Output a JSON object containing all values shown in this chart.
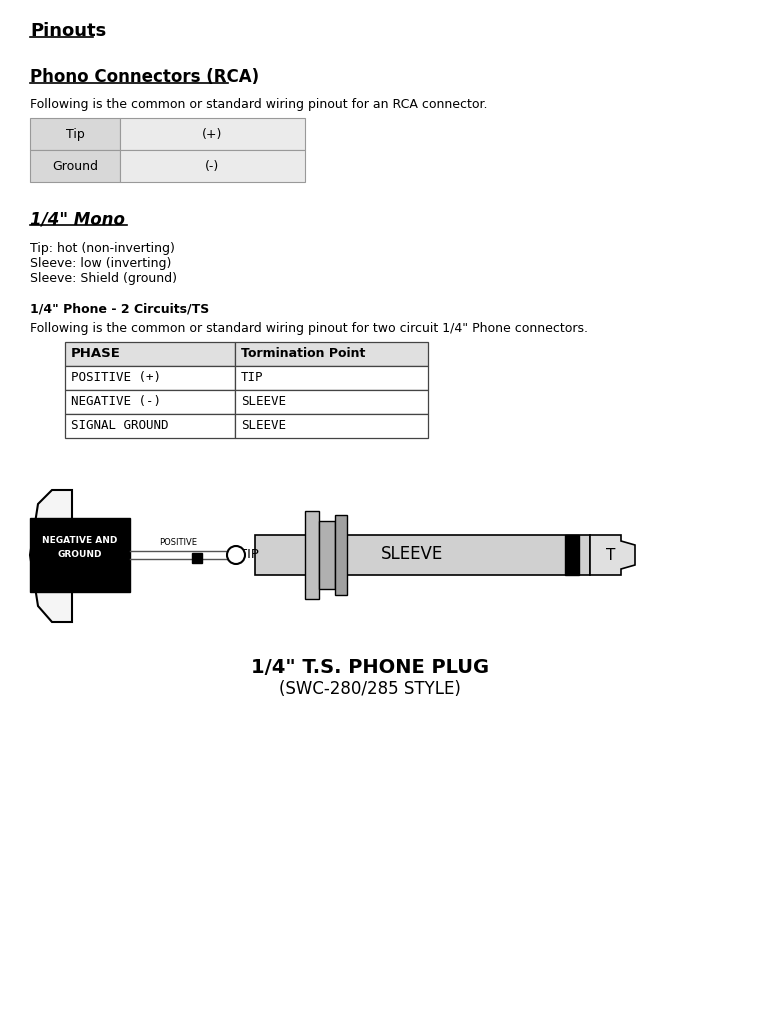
{
  "title_main": "Pinouts",
  "section1_title": "Phono Connectors (RCA)",
  "section1_desc": "Following is the common or standard wiring pinout for an RCA connector.",
  "rca_table": [
    [
      "Tip",
      "(+)"
    ],
    [
      "Ground",
      "(-)"
    ]
  ],
  "section2_title": "1/4\" Mono",
  "section2_lines": [
    "Tip: hot (non-inverting)",
    "Sleeve: low (inverting)",
    "Sleeve: Shield (ground)"
  ],
  "section3_subtitle": "1/4\" Phone - 2 Circuits/TS",
  "section3_desc": "Following is the common or standard wiring pinout for two circuit 1/4\" Phone connectors.",
  "phase_table_headers": [
    "PHASE",
    "Tormination Point"
  ],
  "phase_table_rows": [
    [
      "POSITIVE (+)",
      "TIP"
    ],
    [
      "NEGATIVE (-)",
      "SLEEVE"
    ],
    [
      "SIGNAL GROUND",
      "SLEEVE"
    ]
  ],
  "diagram_caption_line1": "1/4\" T.S. PHONE PLUG",
  "diagram_caption_line2": "(SWC-280/285 STYLE)",
  "bg_color": "#ffffff"
}
